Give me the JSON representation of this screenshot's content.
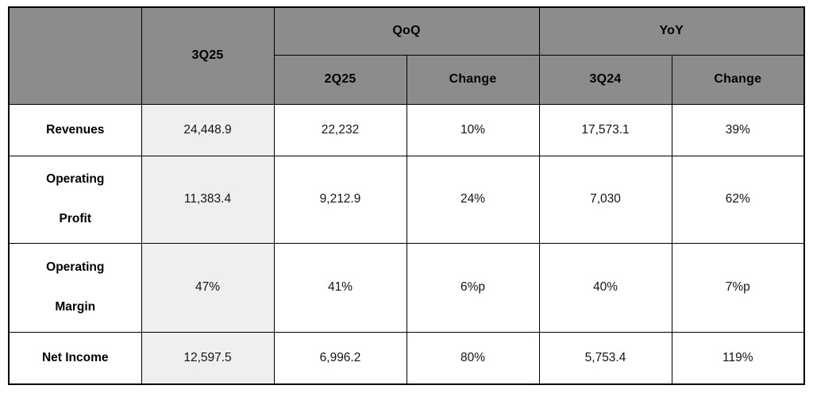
{
  "colors": {
    "header_bg": "#8c8c8c",
    "highlight_bg": "#efefef",
    "border_color": "#000000"
  },
  "table": {
    "header": {
      "current_quarter": "3Q25",
      "qoq_group": "QoQ",
      "yoy_group": "YoY",
      "sub_headers": [
        "2Q25",
        "Change",
        "3Q24",
        "Change"
      ]
    },
    "rows": [
      {
        "label": "Revenues",
        "values": [
          "24,448.9",
          "22,232",
          "10%",
          "17,573.1",
          "39%"
        ]
      },
      {
        "label": "Operating\nProfit",
        "values": [
          "11,383.4",
          "9,212.9",
          "24%",
          "7,030",
          "62%"
        ]
      },
      {
        "label": "Operating\nMargin",
        "values": [
          "47%",
          "41%",
          "6%p",
          "40%",
          "7%p"
        ]
      },
      {
        "label": "Net Income",
        "values": [
          "12,597.5",
          "6,996.2",
          "80%",
          "5,753.4",
          "119%"
        ]
      }
    ]
  },
  "chart_data": {
    "type": "table",
    "column_groups": [
      {
        "label": "",
        "columns": [
          "3Q25"
        ]
      },
      {
        "label": "QoQ",
        "columns": [
          "2Q25",
          "Change"
        ]
      },
      {
        "label": "YoY",
        "columns": [
          "3Q24",
          "Change"
        ]
      }
    ],
    "rows": [
      {
        "metric": "Revenues",
        "3Q25": 24448.9,
        "2Q25": 22232,
        "QoQ_change": "10%",
        "3Q24": 17573.1,
        "YoY_change": "39%"
      },
      {
        "metric": "Operating Profit",
        "3Q25": 11383.4,
        "2Q25": 9212.9,
        "QoQ_change": "24%",
        "3Q24": 7030,
        "YoY_change": "62%"
      },
      {
        "metric": "Operating Margin",
        "3Q25": "47%",
        "2Q25": "41%",
        "QoQ_change": "6%p",
        "3Q24": "40%",
        "YoY_change": "7%p"
      },
      {
        "metric": "Net Income",
        "3Q25": 12597.5,
        "2Q25": 6996.2,
        "QoQ_change": "80%",
        "3Q24": 5753.4,
        "YoY_change": "119%"
      }
    ]
  }
}
